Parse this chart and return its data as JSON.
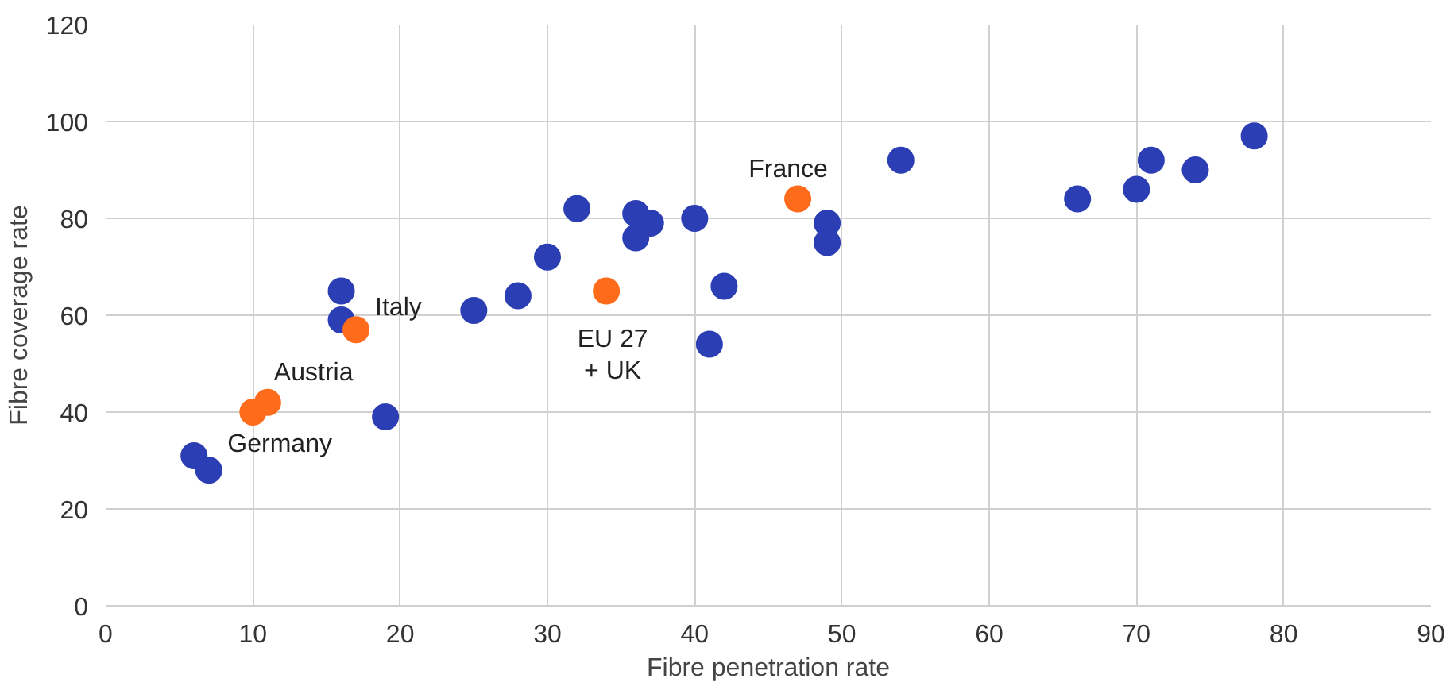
{
  "chart_data": {
    "type": "scatter",
    "xlabel": "Fibre penetration rate",
    "ylabel": "Fibre coverage rate",
    "series": [
      {
        "color": "#2b3eb4",
        "x": [
          6,
          7,
          16,
          16,
          19,
          25,
          28,
          30,
          32,
          36,
          36,
          37,
          40,
          41,
          42,
          49,
          49,
          54,
          66,
          70,
          71,
          74,
          78
        ],
        "values": [
          31,
          28,
          65,
          59,
          39,
          61,
          64,
          72,
          82,
          81,
          76,
          79,
          80,
          54,
          66,
          79,
          75,
          92,
          84,
          86,
          92,
          90,
          97
        ]
      },
      {
        "color": "#fe6b1a",
        "x": [
          10,
          11,
          17,
          34,
          47
        ],
        "values": [
          40,
          42,
          57,
          65,
          84
        ]
      }
    ],
    "xlim": [
      0,
      90
    ],
    "xticks": [
      0,
      10,
      20,
      30,
      40,
      50,
      60,
      70,
      80,
      90
    ],
    "ylim": [
      0,
      120
    ],
    "yticks": [
      0,
      20,
      40,
      60,
      80,
      100,
      120
    ],
    "grid": true,
    "marker": "circle",
    "annotations": [
      {
        "text": "Italy",
        "x": 17,
        "y": 57
      },
      {
        "text": "France",
        "x": 47,
        "y": 84
      },
      {
        "text": "Austria",
        "x": 11,
        "y": 42
      },
      {
        "text": "Germany",
        "x": 10,
        "y": 40
      },
      {
        "text": "EU 27\n+ UK",
        "x": 34,
        "y": 65
      }
    ]
  }
}
